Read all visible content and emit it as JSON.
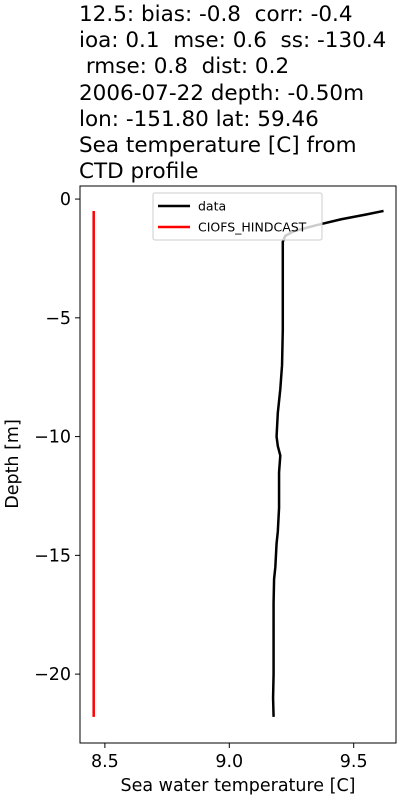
{
  "chart_data": {
    "type": "line",
    "title_lines": [
      "12.5: bias: -0.8  corr: -0.4",
      "ioa: 0.1  mse: 0.6  ss: -130.4",
      " rmse: 0.8  dist: 0.2",
      "2006-07-22 depth: -0.50m",
      "lon: -151.80 lat: 59.46",
      "Sea temperature [C] from",
      "CTD profile"
    ],
    "xlabel": "Sea water temperature [C]",
    "ylabel": "Depth [m]",
    "xlim": [
      8.4,
      9.67
    ],
    "ylim": [
      -22.9,
      0.55
    ],
    "xticks": [
      8.5,
      9.0,
      9.5
    ],
    "xtick_labels": [
      "8.5",
      "9.0",
      "9.5"
    ],
    "yticks": [
      0,
      -5,
      -10,
      -15,
      -20
    ],
    "ytick_labels": [
      "0",
      "−5",
      "−10",
      "−15",
      "−20"
    ],
    "grid": false,
    "legend_position": "upper center",
    "series": [
      {
        "name": "data",
        "color": "#000000",
        "points": [
          [
            9.62,
            -0.5
          ],
          [
            9.55,
            -0.65
          ],
          [
            9.45,
            -0.85
          ],
          [
            9.35,
            -1.1
          ],
          [
            9.26,
            -1.35
          ],
          [
            9.225,
            -1.55
          ],
          [
            9.215,
            -1.8
          ],
          [
            9.215,
            -2.5
          ],
          [
            9.215,
            -4.0
          ],
          [
            9.215,
            -5.5
          ],
          [
            9.212,
            -7.0
          ],
          [
            9.205,
            -8.0
          ],
          [
            9.195,
            -9.0
          ],
          [
            9.19,
            -10.0
          ],
          [
            9.195,
            -10.4
          ],
          [
            9.205,
            -10.8
          ],
          [
            9.2,
            -11.5
          ],
          [
            9.2,
            -13.0
          ],
          [
            9.195,
            -14.0
          ],
          [
            9.19,
            -14.5
          ],
          [
            9.185,
            -15.5
          ],
          [
            9.18,
            -16.0
          ],
          [
            9.178,
            -17.0
          ],
          [
            9.178,
            -18.5
          ],
          [
            9.178,
            -20.0
          ],
          [
            9.176,
            -21.0
          ],
          [
            9.178,
            -21.8
          ]
        ]
      },
      {
        "name": "CIOFS_HINDCAST",
        "color": "#ff0000",
        "points": [
          [
            8.455,
            -0.5
          ],
          [
            8.455,
            -21.8
          ]
        ]
      }
    ]
  }
}
